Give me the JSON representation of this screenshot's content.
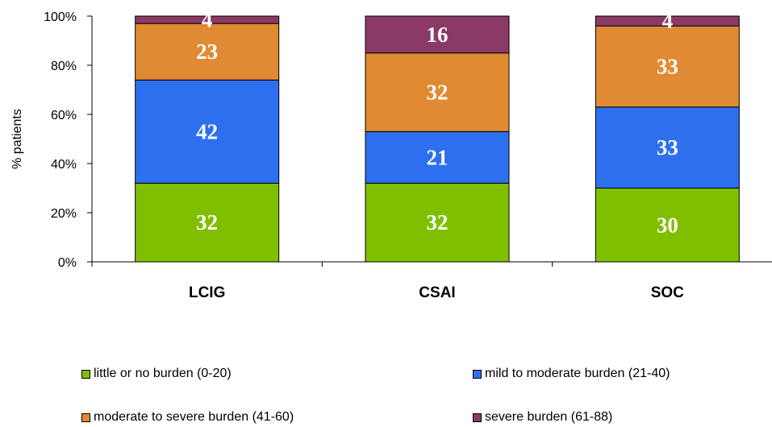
{
  "chart_data": {
    "type": "bar",
    "stacked": true,
    "categories": [
      "LCIG",
      "CSAI",
      "SOC"
    ],
    "series": [
      {
        "name": "little or no burden (0-20)",
        "color": "#80BF00",
        "values": [
          32,
          32,
          30
        ]
      },
      {
        "name": "mild to moderate burden (21-40)",
        "color": "#2E6FEF",
        "values": [
          42,
          21,
          33
        ]
      },
      {
        "name": "moderate to severe burden (41-60)",
        "color": "#E08A33",
        "values": [
          23,
          32,
          33
        ]
      },
      {
        "name": "severe burden (61-88)",
        "color": "#8B3A66",
        "values": [
          4,
          16,
          4
        ]
      }
    ],
    "ylabel": "% patients",
    "xlabel": "",
    "ylim": [
      0,
      100
    ],
    "yticks": [
      "0%",
      "20%",
      "40%",
      "60%",
      "80%",
      "100%"
    ],
    "legend_position": "bottom",
    "grid": false
  }
}
